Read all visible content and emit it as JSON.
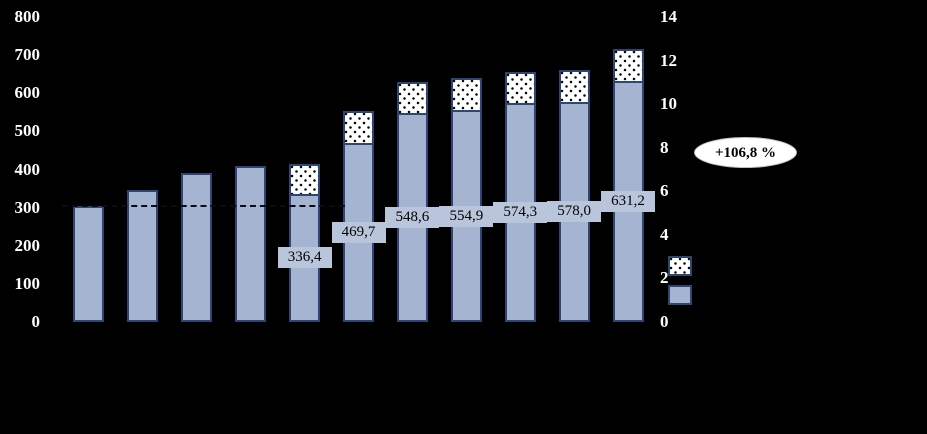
{
  "colors": {
    "background": "#000000",
    "bar_fill": "#a5b5d1",
    "bar_border": "#2d4772",
    "dotted_fill": "#ffffff",
    "dot_color": "#000000",
    "axis_text": "#ffffff",
    "data_label_bg": "#b9c5da",
    "data_label_text": "#000000",
    "annotation_bg": "#ffffff",
    "annotation_text": "#000000"
  },
  "chart_data": {
    "type": "bar",
    "stacked": true,
    "title": "",
    "categories": [
      "",
      "",
      "",
      "",
      "",
      "",
      "",
      "",
      "",
      "",
      ""
    ],
    "series": [
      {
        "name": "solid-blue-segment",
        "values": [
          305,
          345,
          390,
          410,
          336.4,
          469.7,
          548.6,
          554.9,
          574.3,
          578.0,
          631.2
        ]
      },
      {
        "name": "dotted-top-segment-estimated",
        "values": [
          0,
          0,
          0,
          0,
          79,
          85,
          82,
          84,
          82,
          82,
          84
        ]
      }
    ],
    "data_labels": [
      "",
      "",
      "",
      "",
      "336,4",
      "469,7",
      "548,6",
      "554,9",
      "574,3",
      "578,0",
      "631,2"
    ],
    "left_axis": {
      "min": 0,
      "max": 800,
      "step": 100,
      "ticks": [
        "0",
        "100",
        "200",
        "300",
        "400",
        "500",
        "600",
        "700",
        "800"
      ]
    },
    "right_axis": {
      "min": 0,
      "max": 14,
      "step": 2,
      "ticks": [
        "0",
        "2",
        "4",
        "6",
        "8",
        "10",
        "12",
        "14"
      ]
    },
    "reference_line": {
      "value": 305,
      "style": "dashed"
    },
    "annotation": "+106,8 %",
    "legend": {
      "items": [
        {
          "name": "dotted-series",
          "label": ""
        },
        {
          "name": "solid-series",
          "label": ""
        }
      ],
      "position": "right"
    },
    "grid": false
  }
}
